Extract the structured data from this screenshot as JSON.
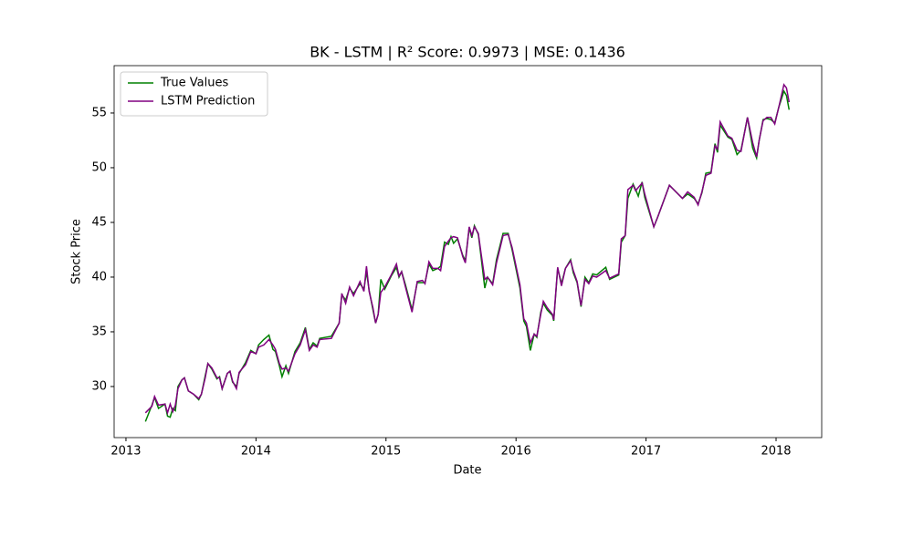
{
  "chart_data": {
    "type": "line",
    "title": "BK - LSTM | R² Score: 0.9973 | MSE: 0.1436",
    "x_label": "Date",
    "y_label": "Stock Price",
    "x": [
      2013.15,
      2013.2,
      2013.22,
      2013.25,
      2013.3,
      2013.32,
      2013.34,
      2013.36,
      2013.38,
      2013.4,
      2013.43,
      2013.45,
      2013.48,
      2013.52,
      2013.56,
      2013.58,
      2013.61,
      2013.63,
      2013.66,
      2013.7,
      2013.72,
      2013.74,
      2013.78,
      2013.8,
      2013.82,
      2013.85,
      2013.87,
      2013.92,
      2013.96,
      2014.0,
      2014.02,
      2014.06,
      2014.1,
      2014.13,
      2014.15,
      2014.18,
      2014.2,
      2014.23,
      2014.25,
      2014.3,
      2014.34,
      2014.38,
      2014.41,
      2014.44,
      2014.47,
      2014.49,
      2014.58,
      2014.64,
      2014.66,
      2014.69,
      2014.72,
      2014.75,
      2014.8,
      2014.83,
      2014.85,
      2014.87,
      2014.9,
      2014.92,
      2014.94,
      2014.96,
      2014.99,
      2015.04,
      2015.08,
      2015.1,
      2015.12,
      2015.15,
      2015.2,
      2015.24,
      2015.28,
      2015.3,
      2015.33,
      2015.36,
      2015.4,
      2015.42,
      2015.45,
      2015.48,
      2015.5,
      2015.52,
      2015.55,
      2015.59,
      2015.61,
      2015.64,
      2015.66,
      2015.68,
      2015.71,
      2015.73,
      2015.76,
      2015.78,
      2015.82,
      2015.85,
      2015.9,
      2015.94,
      2015.97,
      2016.03,
      2016.06,
      2016.08,
      2016.11,
      2016.14,
      2016.16,
      2016.19,
      2016.21,
      2016.24,
      2016.28,
      2016.29,
      2016.32,
      2016.35,
      2016.38,
      2016.42,
      2016.44,
      2016.47,
      2016.5,
      2016.53,
      2016.56,
      2016.59,
      2016.62,
      2016.69,
      2016.72,
      2016.79,
      2016.81,
      2016.84,
      2016.86,
      2016.9,
      2016.92,
      2016.94,
      2016.97,
      2016.99,
      2017.06,
      2017.09,
      2017.18,
      2017.28,
      2017.32,
      2017.37,
      2017.4,
      2017.43,
      2017.46,
      2017.5,
      2017.53,
      2017.55,
      2017.57,
      2017.63,
      2017.66,
      2017.7,
      2017.73,
      2017.78,
      2017.82,
      2017.85,
      2017.87,
      2017.9,
      2017.93,
      2017.96,
      2017.99,
      2018.02,
      2018.06,
      2018.08,
      2018.1
    ],
    "series": [
      {
        "name": "True Values",
        "color": "#008000",
        "values": [
          26.8,
          28.3,
          29.0,
          28.0,
          28.4,
          27.3,
          27.2,
          28.0,
          27.8,
          30.0,
          30.6,
          30.8,
          29.6,
          29.3,
          28.8,
          29.3,
          31.0,
          32.1,
          31.6,
          30.7,
          30.9,
          29.8,
          31.2,
          31.4,
          30.4,
          30.0,
          31.2,
          32.2,
          33.3,
          33.0,
          33.8,
          34.3,
          34.7,
          33.4,
          33.2,
          31.9,
          30.9,
          31.9,
          31.2,
          33.2,
          34.0,
          35.4,
          33.4,
          34.0,
          33.7,
          34.4,
          34.6,
          35.8,
          38.4,
          37.9,
          39.0,
          38.5,
          39.4,
          38.9,
          40.5,
          38.8,
          37.0,
          35.8,
          36.6,
          39.8,
          38.9,
          40.1,
          40.9,
          40.0,
          40.5,
          39.3,
          37.0,
          39.5,
          39.5,
          39.5,
          41.2,
          40.6,
          40.8,
          41.0,
          43.2,
          43.0,
          43.7,
          43.1,
          43.5,
          42.0,
          41.5,
          44.5,
          43.6,
          44.7,
          43.9,
          42.0,
          39.0,
          40.0,
          39.4,
          41.6,
          44.0,
          44.0,
          42.5,
          39.0,
          36.0,
          35.5,
          33.3,
          34.8,
          34.5,
          36.8,
          37.6,
          37.0,
          36.5,
          36.0,
          40.8,
          39.4,
          40.8,
          41.6,
          40.4,
          39.5,
          37.3,
          40.0,
          39.5,
          40.3,
          40.2,
          40.9,
          39.8,
          40.2,
          43.2,
          43.8,
          47.2,
          48.5,
          48.0,
          47.4,
          48.7,
          47.3,
          44.6,
          45.5,
          48.4,
          47.2,
          47.6,
          47.2,
          46.7,
          47.7,
          49.5,
          49.6,
          52.2,
          51.4,
          53.9,
          52.8,
          52.6,
          51.2,
          51.6,
          54.6,
          51.8,
          50.9,
          52.5,
          54.4,
          54.5,
          54.4,
          54.1,
          55.5,
          57.0,
          56.6,
          55.3
        ]
      },
      {
        "name": "LSTM Prediction",
        "color": "#800080",
        "values": [
          27.6,
          28.2,
          29.1,
          28.3,
          28.4,
          27.6,
          28.4,
          27.7,
          28.3,
          29.8,
          30.6,
          30.8,
          29.6,
          29.3,
          28.9,
          29.3,
          30.8,
          32.1,
          31.7,
          30.8,
          30.8,
          29.8,
          31.2,
          31.4,
          30.5,
          29.8,
          31.3,
          32.0,
          33.2,
          33.0,
          33.6,
          33.8,
          34.3,
          33.8,
          33.4,
          32.1,
          31.6,
          31.7,
          31.4,
          33.0,
          33.8,
          35.2,
          33.3,
          33.8,
          33.6,
          34.3,
          34.4,
          35.8,
          38.5,
          37.6,
          39.1,
          38.3,
          39.6,
          38.7,
          41.0,
          38.7,
          37.2,
          35.8,
          36.6,
          38.6,
          39.1,
          40.2,
          41.2,
          40.1,
          40.5,
          39.1,
          36.8,
          39.6,
          39.7,
          39.4,
          41.4,
          40.8,
          40.8,
          40.6,
          42.8,
          43.3,
          43.6,
          43.7,
          43.6,
          41.9,
          41.3,
          44.6,
          43.8,
          44.6,
          44.0,
          42.3,
          39.8,
          40.0,
          39.3,
          41.3,
          43.8,
          43.9,
          42.7,
          39.3,
          36.2,
          35.8,
          34.0,
          34.8,
          34.6,
          36.6,
          37.8,
          37.2,
          36.6,
          36.1,
          40.9,
          39.2,
          40.8,
          41.5,
          40.6,
          39.6,
          37.4,
          39.8,
          39.4,
          40.1,
          40.0,
          40.6,
          39.9,
          40.3,
          43.5,
          43.8,
          48.0,
          48.4,
          47.9,
          48.2,
          48.6,
          47.6,
          44.6,
          45.5,
          48.4,
          47.2,
          47.8,
          47.3,
          46.6,
          47.8,
          49.3,
          49.5,
          52.0,
          51.7,
          54.2,
          52.9,
          52.7,
          51.6,
          51.5,
          54.6,
          52.3,
          51.0,
          52.5,
          54.3,
          54.6,
          54.6,
          54.0,
          55.5,
          57.6,
          57.3,
          56.0
        ]
      }
    ],
    "xlim": [
      2012.909,
      2018.351
    ],
    "xticks": [
      2013,
      2014,
      2015,
      2016,
      2017,
      2018
    ],
    "ylim": [
      25.33,
      59.33
    ],
    "yticks": [
      30,
      35,
      40,
      45,
      50,
      55
    ],
    "legend": "upper left",
    "grid": false
  }
}
